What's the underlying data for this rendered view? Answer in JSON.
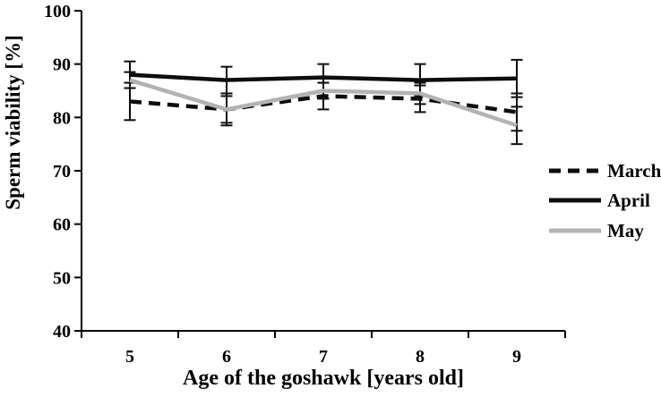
{
  "chart_data": {
    "type": "line",
    "title": "",
    "xlabel": "Age of the goshawk [years old]",
    "ylabel": "Sperm viability [%]",
    "categories": [
      "5",
      "6",
      "7",
      "8",
      "9"
    ],
    "ylim": [
      40,
      100
    ],
    "yticks": [
      100,
      90,
      80,
      70,
      60,
      50,
      40
    ],
    "grid": false,
    "legend_position": "right",
    "axis_color": "#000000",
    "error_bar_color": "#0d0d0d",
    "series": [
      {
        "name": "March",
        "style": "dashed",
        "color": "#0d0d0d",
        "values": [
          83,
          81.5,
          84,
          83.5,
          81
        ],
        "error": [
          3.5,
          3,
          2.5,
          2.5,
          3.5
        ]
      },
      {
        "name": "April",
        "style": "solid",
        "color": "#0d0d0d",
        "values": [
          88,
          87,
          87.5,
          87,
          87.3
        ],
        "error": [
          2.5,
          2.5,
          2.5,
          3,
          3.5
        ]
      },
      {
        "name": "May",
        "style": "solid",
        "color": "#b3b3b3",
        "values": [
          87,
          81.5,
          85,
          84.5,
          78.5
        ],
        "error": [
          1.5,
          2.5,
          1.5,
          2,
          3.5
        ]
      }
    ]
  }
}
